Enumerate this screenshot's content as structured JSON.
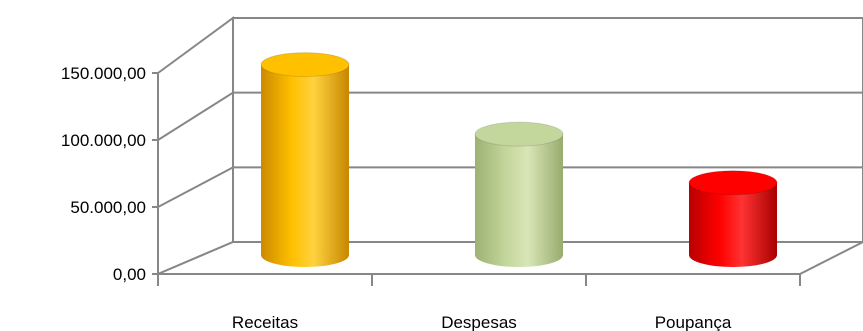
{
  "chart_data": {
    "type": "bar",
    "style": "3d-cylinder",
    "categories": [
      "Receitas",
      "Despesas",
      "Poupança"
    ],
    "values": [
      145000,
      92000,
      55000
    ],
    "ylim": [
      0,
      150000
    ],
    "yticks": [
      0,
      50000,
      100000,
      150000
    ],
    "ytick_labels": [
      "0,00",
      "50.000,00",
      "100.000,00",
      "150.000,00"
    ],
    "grid": true,
    "legend": "none",
    "colors": [
      "#FFC000",
      "#C3D69B",
      "#FF0000"
    ],
    "title": "",
    "xlabel": "",
    "ylabel": ""
  }
}
